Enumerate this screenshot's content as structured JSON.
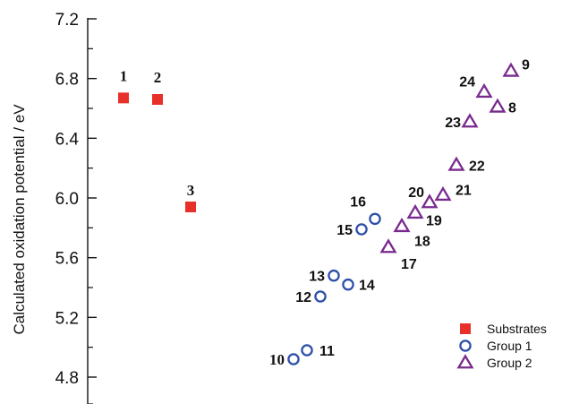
{
  "chart_data": {
    "type": "scatter",
    "ylabel": "Calculated oxidation potential / eV",
    "ylim": [
      4.7,
      7.2
    ],
    "yticks": [
      "4.8",
      "5.2",
      "5.6",
      "6.0",
      "6.4",
      "6.8",
      "7.2"
    ],
    "legend_position": "bottom-right",
    "series": [
      {
        "name": "Substrates",
        "marker": "square",
        "color": "#e8302a",
        "points": [
          {
            "label": "1",
            "x": 1,
            "y": 6.67
          },
          {
            "label": "2",
            "x": 2,
            "y": 6.66
          },
          {
            "label": "3",
            "x": 3,
            "y": 5.94
          }
        ]
      },
      {
        "name": "Group 1",
        "marker": "circle",
        "color": "#2d4fa8",
        "points": [
          {
            "label": "10",
            "x": 8,
            "y": 4.92
          },
          {
            "label": "11",
            "x": 8.4,
            "y": 4.98
          },
          {
            "label": "12",
            "x": 8.8,
            "y": 5.34
          },
          {
            "label": "13",
            "x": 9.2,
            "y": 5.48
          },
          {
            "label": "14",
            "x": 9.6,
            "y": 5.42
          },
          {
            "label": "15",
            "x": 10,
            "y": 5.79
          },
          {
            "label": "16",
            "x": 10.4,
            "y": 5.86
          }
        ]
      },
      {
        "name": "Group 2",
        "marker": "triangle",
        "color": "#7a2a8e",
        "points": [
          {
            "label": "17",
            "x": 10.8,
            "y": 5.67
          },
          {
            "label": "18",
            "x": 11.2,
            "y": 5.81
          },
          {
            "label": "19",
            "x": 11.6,
            "y": 5.9
          },
          {
            "label": "20",
            "x": 12,
            "y": 5.97
          },
          {
            "label": "21",
            "x": 12.4,
            "y": 6.02
          },
          {
            "label": "22",
            "x": 12.8,
            "y": 6.22
          },
          {
            "label": "23",
            "x": 13.2,
            "y": 6.51
          },
          {
            "label": "24",
            "x": 13.6,
            "y": 6.71
          },
          {
            "label": "8",
            "x": 14,
            "y": 6.61
          },
          {
            "label": "9",
            "x": 14.4,
            "y": 6.85
          }
        ]
      }
    ]
  }
}
